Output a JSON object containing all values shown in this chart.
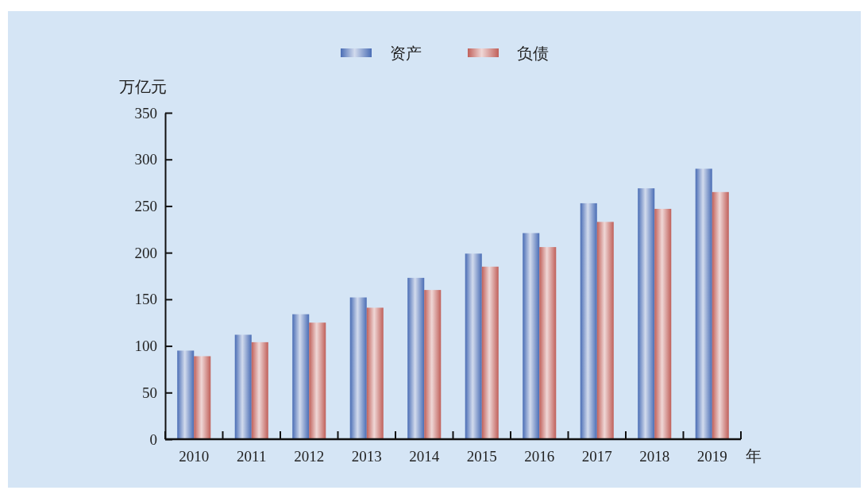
{
  "chart_data": {
    "type": "bar",
    "xlabel": "年",
    "ylabel": "万亿元",
    "categories": [
      "2010",
      "2011",
      "2012",
      "2013",
      "2014",
      "2015",
      "2016",
      "2017",
      "2018",
      "2019"
    ],
    "series": [
      {
        "name": "资产",
        "color": "#4a6db5",
        "values": [
          95,
          112,
          134,
          152,
          173,
          199,
          221,
          253,
          269,
          290
        ]
      },
      {
        "name": "负债",
        "color": "#c0605a",
        "values": [
          89,
          104,
          125,
          141,
          160,
          185,
          206,
          233,
          247,
          265
        ]
      }
    ],
    "ylim": [
      0,
      350
    ],
    "yticks": [
      0,
      50,
      100,
      150,
      200,
      250,
      300,
      350
    ],
    "grid": false,
    "legend": "top"
  }
}
